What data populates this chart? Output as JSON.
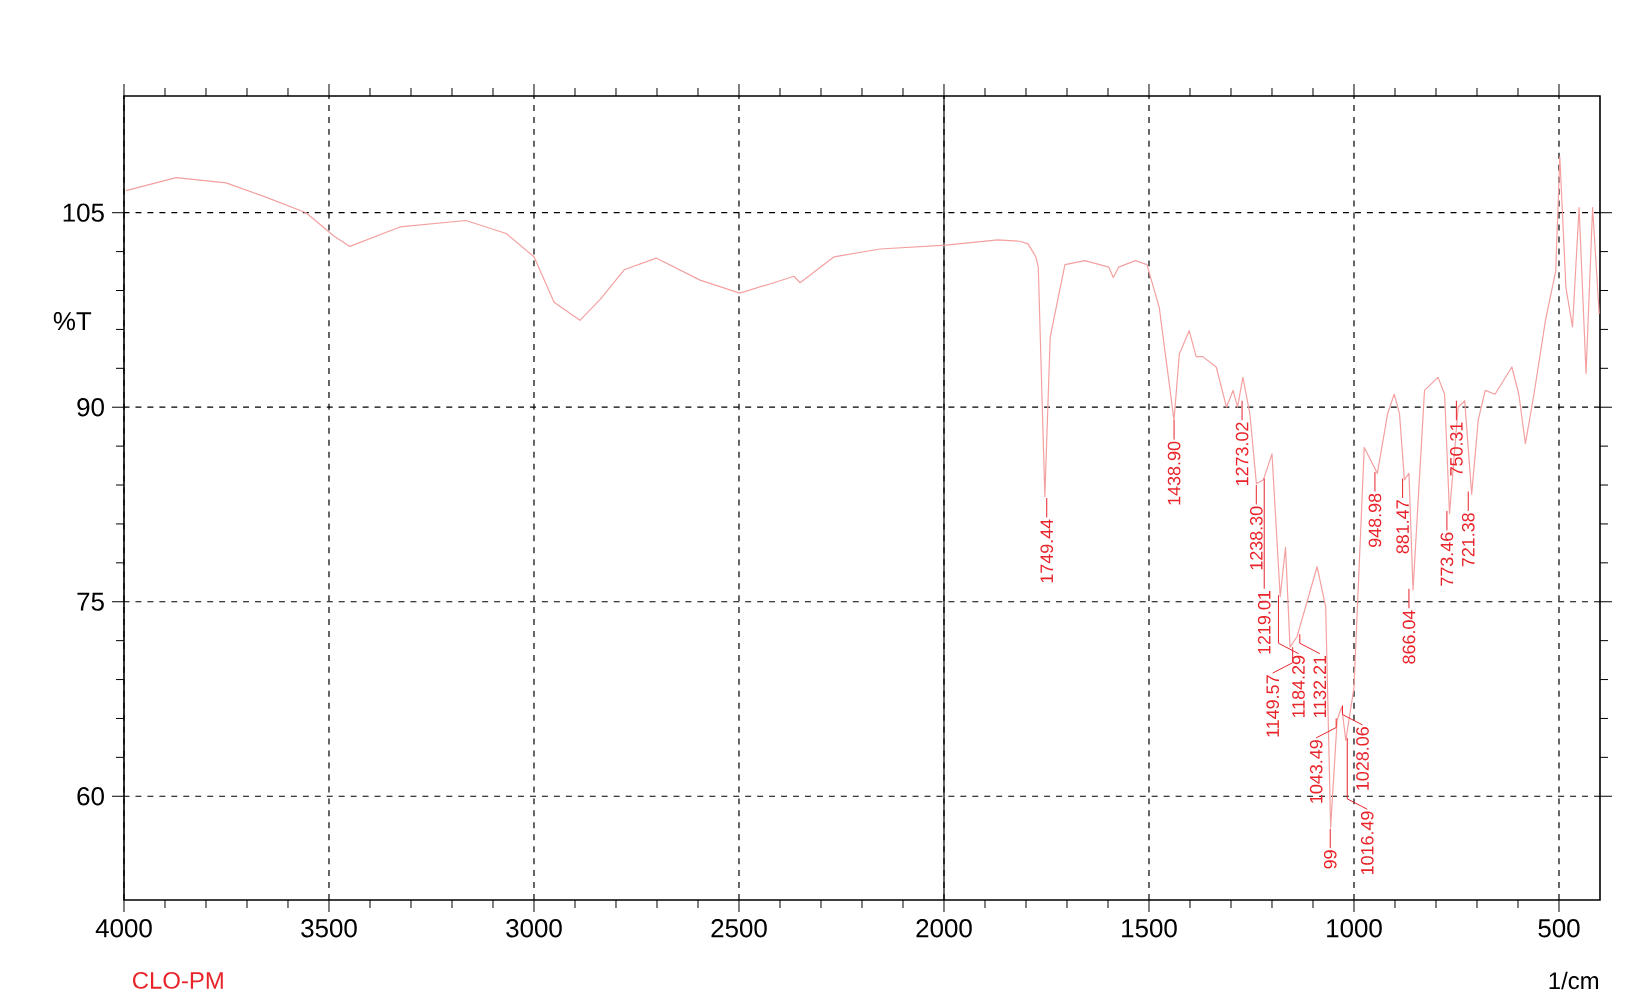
{
  "chart_data": {
    "type": "line",
    "xlabel": "1/cm",
    "ylabel": "%T",
    "xlim": [
      4000,
      400
    ],
    "ylim": [
      52,
      114
    ],
    "xticks": [
      4000,
      3500,
      3000,
      2500,
      2000,
      1500,
      1000,
      500
    ],
    "yticks": [
      60,
      75,
      90,
      105
    ],
    "grid": true,
    "ref_lines": [
      {
        "axis": "x",
        "value": 2000,
        "color": "#000000",
        "line_style": "solid"
      }
    ],
    "series": [
      {
        "color": "#f4a0a0",
        "x": [
          3995,
          3873,
          3751,
          3654,
          3556,
          3488,
          3449,
          3327,
          3166,
          3068,
          3000,
          2951,
          2888,
          2839,
          2780,
          2702,
          2595,
          2498,
          2415,
          2366,
          2351,
          2268,
          2156,
          1995,
          1869,
          1815,
          1795,
          1776,
          1770,
          1754,
          1741,
          1705,
          1656,
          1598,
          1587,
          1574,
          1533,
          1505,
          1475,
          1439,
          1426,
          1402,
          1385,
          1369,
          1336,
          1311,
          1295,
          1284,
          1271,
          1254,
          1238,
          1221,
          1200,
          1180,
          1167,
          1156,
          1139,
          1090,
          1069,
          1057,
          1041,
          1030,
          1020,
          1000,
          975,
          943,
          918,
          902,
          889,
          877,
          866,
          856,
          828,
          795,
          779,
          767,
          746,
          730,
          713,
          697,
          680,
          656,
          615,
          598,
          582,
          561,
          533,
          508,
          498,
          483,
          467,
          451,
          434,
          418,
          402
        ],
        "values": [
          106.7,
          107.7,
          107.3,
          106.2,
          105.0,
          103.2,
          102.4,
          103.9,
          104.4,
          103.4,
          101.6,
          98.1,
          96.7,
          98.3,
          100.6,
          101.5,
          99.8,
          98.8,
          99.6,
          100.1,
          99.6,
          101.6,
          102.2,
          102.5,
          102.9,
          102.8,
          102.6,
          101.6,
          100.8,
          83.1,
          95.4,
          101.0,
          101.3,
          100.8,
          100.0,
          100.8,
          101.3,
          101.0,
          97.7,
          89.0,
          94.1,
          95.9,
          93.9,
          93.9,
          93.1,
          90.0,
          91.3,
          90.0,
          92.3,
          89.5,
          84.1,
          84.4,
          86.4,
          75.4,
          79.2,
          71.5,
          72.3,
          77.7,
          74.6,
          57.6,
          65.9,
          66.9,
          64.3,
          68.4,
          86.9,
          84.9,
          89.5,
          91.0,
          89.5,
          84.4,
          84.9,
          75.9,
          91.3,
          92.3,
          91.0,
          81.8,
          90.0,
          90.5,
          83.3,
          89.0,
          91.3,
          91.0,
          93.1,
          91.0,
          87.2,
          91.0,
          96.7,
          100.5,
          109.3,
          99.2,
          96.2,
          105.4,
          92.6,
          105.4,
          97.2
        ]
      }
    ],
    "annotations": [
      {
        "text": "1749.44",
        "x": 1749.44,
        "y": 83
      },
      {
        "text": "1438.90",
        "x": 1438.9,
        "y": 89
      },
      {
        "text": "1273.02",
        "x": 1273.02,
        "y": 90.5
      },
      {
        "text": "1238.30",
        "x": 1238.3,
        "y": 84
      },
      {
        "text": "1219.01",
        "x": 1219.01,
        "y": 84.5
      },
      {
        "text": "1184.29",
        "x": 1184.29,
        "y": 75.5
      },
      {
        "text": "1149.57",
        "x": 1149.57,
        "y": 71.5
      },
      {
        "text": "1132.21",
        "x": 1132.21,
        "y": 72.5
      },
      {
        "text": "99",
        "x": 1058,
        "y": 57.5
      },
      {
        "text": "1043.49",
        "x": 1043.49,
        "y": 66
      },
      {
        "text": "1028.06",
        "x": 1028.06,
        "y": 67
      },
      {
        "text": "1016.49",
        "x": 1016.49,
        "y": 64.5
      },
      {
        "text": "948.98",
        "x": 948.98,
        "y": 85
      },
      {
        "text": "881.47",
        "x": 881.47,
        "y": 84.5
      },
      {
        "text": "866.04",
        "x": 866.04,
        "y": 76
      },
      {
        "text": "773.46",
        "x": 773.46,
        "y": 82
      },
      {
        "text": "750.31",
        "x": 750.31,
        "y": 90.5
      },
      {
        "text": "721.38",
        "x": 721.38,
        "y": 83.5
      },
      "CLO-PM"
    ]
  }
}
